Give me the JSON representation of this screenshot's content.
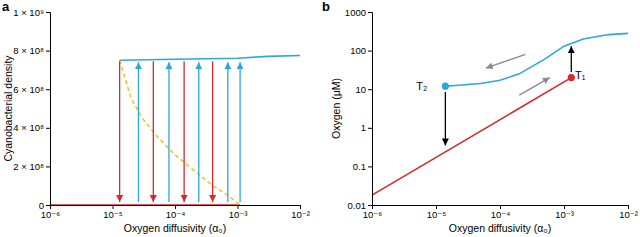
{
  "chart_data": [
    {
      "type": "line",
      "title": "a",
      "xlabel": "Oxygen diffusivity (α₀)",
      "ylabel": "Cyanobacterial density",
      "log": "x",
      "xlim": [
        1e-06,
        0.01
      ],
      "xticks": [
        {
          "value": 1e-06,
          "label": "10⁻⁶"
        },
        {
          "value": 1e-05,
          "label": "10⁻⁵"
        },
        {
          "value": 0.0001,
          "label": "10⁻⁴"
        },
        {
          "value": 0.001,
          "label": "10⁻³"
        },
        {
          "value": 0.01,
          "label": "10⁻²"
        }
      ],
      "ylim": [
        0,
        1000000000
      ],
      "yticks": [
        0,
        {
          "value": 200000000,
          "label": "2 × 10⁸"
        },
        {
          "value": 400000000,
          "label": "4 × 10⁸"
        },
        {
          "value": 600000000,
          "label": "6 × 10⁸"
        },
        {
          "value": 800000000,
          "label": "8 × 10⁸"
        },
        {
          "value": 1000000000,
          "label": "1 × 10⁹"
        }
      ],
      "series": [
        {
          "color": "#d42a2a",
          "x": [
            1e-06,
            0.0011
          ],
          "values": [
            0,
            0
          ]
        },
        {
          "color": "#2aa6e3",
          "x": [
            1.3e-05,
            0.0001,
            0.001,
            0.003,
            0.01
          ],
          "values": [
            750000000,
            755000000,
            760000000,
            770000000,
            775000000
          ]
        },
        {
          "color": "#f2c12e",
          "line_style": "dashed",
          "x": [
            1.3e-05,
            2e-05,
            3e-05,
            5e-05,
            0.0001,
            0.0002,
            0.0004,
            0.0007,
            0.0011
          ],
          "values": [
            750000000,
            550000000,
            450000000,
            360000000,
            260000000,
            180000000,
            100000000,
            50000000,
            0
          ]
        },
        {
          "type": "arrow",
          "color": "#d42a2a",
          "x": [
            1.3e-05,
            4.5e-05,
            0.00014,
            0.0004
          ],
          "from": [
            745000000,
            745000000,
            745000000,
            745000000
          ],
          "values": [
            15000000,
            15000000,
            15000000,
            15000000
          ]
        },
        {
          "type": "arrow",
          "color": "#2aa6e3",
          "x": [
            2.6e-05,
            8e-05,
            0.00024,
            0.0007,
            0.0011
          ],
          "from": [
            15000000,
            15000000,
            15000000,
            15000000,
            15000000
          ],
          "values": [
            740000000,
            740000000,
            740000000,
            740000000,
            740000000
          ]
        }
      ]
    },
    {
      "type": "line",
      "title": "b",
      "xlabel": "Oxygen diffusivity (α₀)",
      "ylabel": "Oxygen (μM)",
      "log": true,
      "xlim": [
        1e-06,
        0.01
      ],
      "xticks": [
        {
          "value": 1e-06,
          "label": "10⁻⁶"
        },
        {
          "value": 1e-05,
          "label": "10⁻⁵"
        },
        {
          "value": 0.0001,
          "label": "10⁻⁴"
        },
        {
          "value": 0.001,
          "label": "10⁻³"
        },
        {
          "value": 0.01,
          "label": "10⁻²"
        }
      ],
      "ylim": [
        0.01,
        1000
      ],
      "yticks": [
        0.01,
        0.1,
        1,
        10,
        100,
        1000
      ],
      "series": [
        {
          "color": "#d42a2a",
          "x": [
            1e-06,
            0.0013
          ],
          "values": [
            0.018,
            20
          ]
        },
        {
          "color": "#2aa6e3",
          "x": [
            1.4e-05,
            2e-05,
            5e-05,
            0.0001,
            0.0002,
            0.0005,
            0.001,
            0.002,
            0.005,
            0.01
          ],
          "values": [
            12,
            12.5,
            14,
            17,
            25,
            60,
            130,
            200,
            260,
            280
          ]
        },
        {
          "type": "scatter",
          "marker": "circle",
          "color": "#d42a2a",
          "x": [
            0.0013
          ],
          "values": [
            20
          ]
        },
        {
          "type": "scatter",
          "marker": "circle",
          "color": "#2aa6e3",
          "x": [
            1.4e-05
          ],
          "values": [
            12
          ]
        },
        {
          "type": "arrow",
          "color": "#000000",
          "x": [
            0.0013,
            1.4e-05
          ],
          "from": [
            28,
            8.5
          ],
          "values": [
            130,
            0.35
          ]
        },
        {
          "type": "arrow",
          "color": "#8c8c8c",
          "x": [
            0.00025,
            0.0002
          ],
          "x_end": [
            6e-05,
            0.0006
          ],
          "from": [
            80,
            7
          ],
          "values": [
            35,
            20
          ]
        }
      ],
      "annotations": [
        {
          "text": "T₁",
          "x": 0.0018,
          "y": 24
        },
        {
          "text": "T₂",
          "x": 6e-06,
          "y": 12
        }
      ]
    }
  ]
}
